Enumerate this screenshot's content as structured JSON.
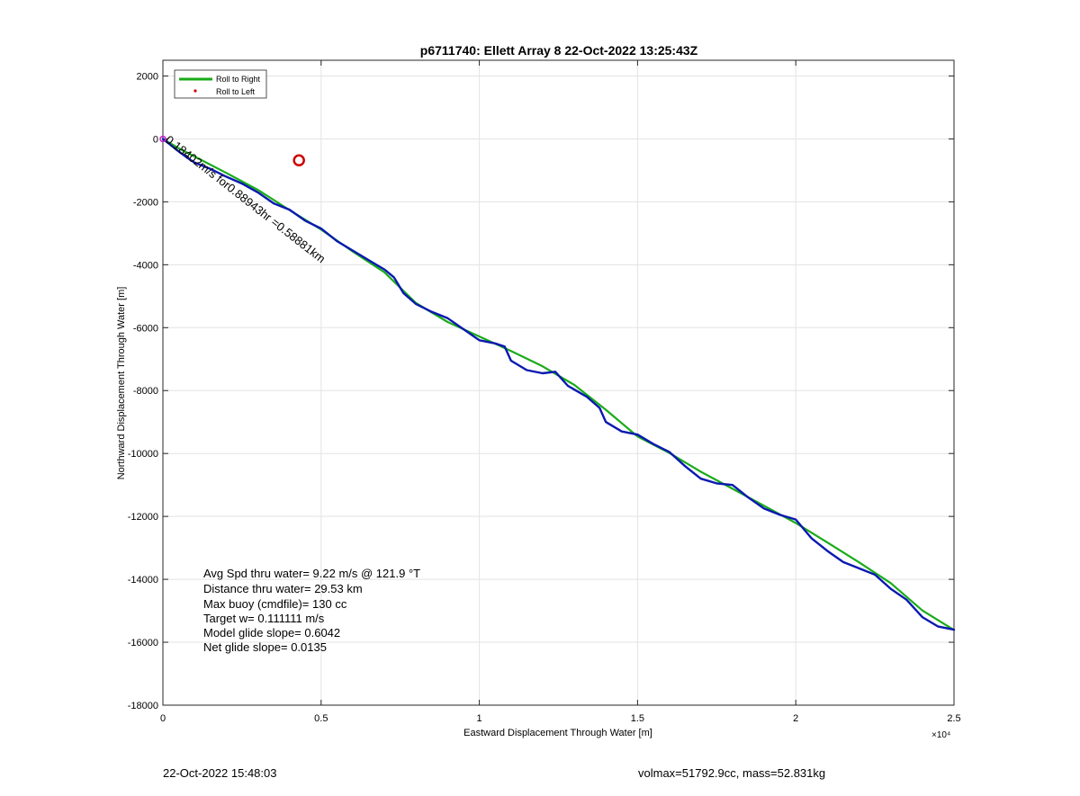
{
  "chart_data": {
    "type": "line",
    "title": "p6711740: Ellett Array 8 22-Oct-2022 13:25:43Z",
    "xlabel": "Eastward Displacement Through Water [m]",
    "ylabel": "Northward Displacement Through Water [m]",
    "xlim": [
      0,
      25000
    ],
    "ylim": [
      -18000,
      2500
    ],
    "x_ticks": [
      0,
      5000,
      10000,
      15000,
      20000,
      25000
    ],
    "x_tick_labels": [
      "0",
      "0.5",
      "1",
      "1.5",
      "2",
      "2.5"
    ],
    "x_exponent_label": "×10⁴",
    "y_ticks": [
      2000,
      0,
      -2000,
      -4000,
      -6000,
      -8000,
      -10000,
      -12000,
      -14000,
      -16000,
      -18000
    ],
    "y_tick_labels": [
      "2000",
      "0",
      "-2000",
      "-4000",
      "-6000",
      "-8000",
      "-10000",
      "-12000",
      "-14000",
      "-16000",
      "-18000"
    ],
    "grid": true,
    "legend": {
      "placement": "top-left",
      "entries": [
        {
          "label": "Roll to Right",
          "color": "#1aab1a",
          "marker": "line"
        },
        {
          "label": "Roll to Left",
          "color": "#cc0000",
          "marker": "dot"
        }
      ]
    },
    "series": [
      {
        "color": "#1aab1a",
        "style": "line",
        "x": [
          0,
          200,
          500,
          1000,
          2000,
          3000,
          4000,
          5000,
          6000,
          7000,
          8000,
          9000,
          10000,
          11000,
          12000,
          13000,
          14000,
          15000,
          16000,
          17000,
          18000,
          19000,
          20000,
          21000,
          22000,
          23000,
          24000,
          25000
        ],
        "y": [
          0,
          -120,
          -300,
          -560,
          -1080,
          -1620,
          -2260,
          -2880,
          -3580,
          -4240,
          -5220,
          -5820,
          -6280,
          -6740,
          -7230,
          -7820,
          -8610,
          -9460,
          -9980,
          -10580,
          -11120,
          -11660,
          -12210,
          -12830,
          -13460,
          -14120,
          -14990,
          -15610
        ]
      },
      {
        "color": "#0a19b0",
        "style": "line",
        "x": [
          0,
          200,
          500,
          800,
          1000,
          1500,
          2000,
          2500,
          3000,
          3500,
          4000,
          4500,
          5000,
          5500,
          6000,
          6500,
          7000,
          7300,
          7600,
          8000,
          8500,
          9000,
          9500,
          10000,
          10500,
          10800,
          11000,
          11500,
          12000,
          12400,
          12800,
          13400,
          13800,
          14000,
          14500,
          15000,
          15500,
          16000,
          16500,
          17000,
          17500,
          18000,
          18500,
          19000,
          19500,
          20000,
          20500,
          21000,
          21500,
          22000,
          22500,
          23000,
          23500,
          24000,
          24500,
          25000
        ],
        "y": [
          0,
          -160,
          -400,
          -620,
          -750,
          -950,
          -1200,
          -1420,
          -1700,
          -2050,
          -2250,
          -2600,
          -2850,
          -3250,
          -3550,
          -3850,
          -4150,
          -4400,
          -4900,
          -5250,
          -5500,
          -5700,
          -6050,
          -6400,
          -6500,
          -6600,
          -7050,
          -7350,
          -7450,
          -7400,
          -7850,
          -8200,
          -8550,
          -9000,
          -9300,
          -9400,
          -9700,
          -9950,
          -10400,
          -10800,
          -10950,
          -11000,
          -11400,
          -11750,
          -11950,
          -12100,
          -12700,
          -13100,
          -13450,
          -13650,
          -13850,
          -14300,
          -14650,
          -15200,
          -15500,
          -15600
        ]
      }
    ],
    "annotations": [
      {
        "text": "Avg Spd thru water=  9.22 m/s @ 121.9 °T"
      },
      {
        "text": "Distance thru water= 29.53 km"
      },
      {
        "text": "Max buoy (cmdfile)= 130 cc"
      },
      {
        "text": "Target w= 0.111111 m/s"
      },
      {
        "text": "Model glide slope= 0.6042"
      },
      {
        "text": "Net glide slope= 0.0135"
      }
    ],
    "rotated_label": {
      "text": "0.18402m/s for0.88943hr =0.58881km"
    },
    "marker_circle": {
      "x": 4300,
      "y": -680,
      "color": "#cc0000"
    }
  },
  "footer": {
    "left": "22-Oct-2022 15:48:03",
    "right": "volmax=51792.9cc, mass=52.831kg"
  }
}
